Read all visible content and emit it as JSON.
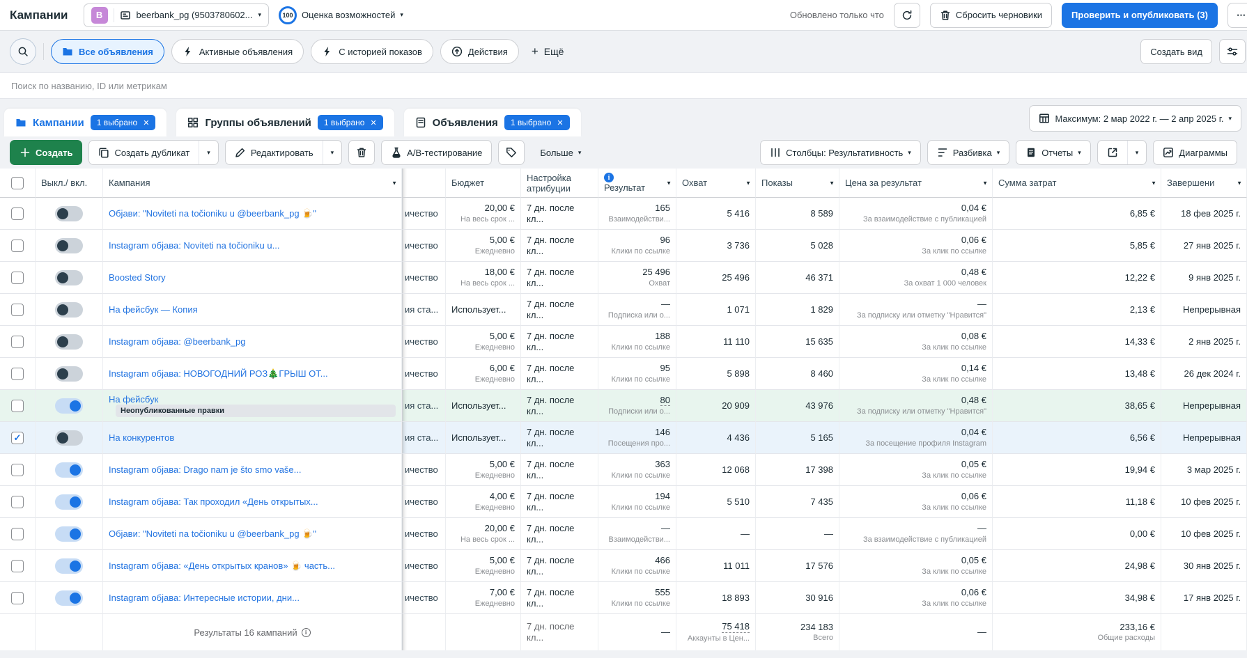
{
  "colors": {
    "accent_blue": "#1b74e4",
    "create_green": "#1e824c",
    "link_blue": "#2374e1",
    "row_highlight_green": "#e8f5ee",
    "row_highlight_blue": "#eaf3fb",
    "avatar_purple": "#c688d8"
  },
  "header": {
    "title": "Кампании",
    "account": {
      "avatar_letter": "B",
      "name": "beerbank_pg (9503780602..."
    },
    "opportunity_score": {
      "value": "100",
      "label": "Оценка возможностей"
    },
    "updated_status": "Обновлено только что",
    "discard_drafts": "Сбросить черновики",
    "publish": "Проверить и опубликовать (3)",
    "more": "⋯"
  },
  "filter_bar": {
    "pills": [
      {
        "label": "Все объявления",
        "icon": "folder",
        "active": true
      },
      {
        "label": "Активные объявления",
        "icon": "bolt",
        "active": false
      },
      {
        "label": "С историей показов",
        "icon": "bolt",
        "active": false
      },
      {
        "label": "Действия",
        "icon": "arrowup",
        "active": false
      }
    ],
    "more": "Ещё",
    "create_view": "Создать вид"
  },
  "search": {
    "placeholder": "Поиск по названию, ID или метрикам"
  },
  "tabs": [
    {
      "label": "Кампании",
      "badge": "1 выбрано",
      "icon": "folder",
      "active": true
    },
    {
      "label": "Группы объявлений",
      "badge": "1 выбрано",
      "icon": "grid",
      "active": false
    },
    {
      "label": "Объявления",
      "badge": "1 выбрано",
      "icon": "file",
      "active": false
    }
  ],
  "date_range": "Максимум: 2 мар 2022 г. — 2 апр 2025 г.",
  "toolbar": {
    "create": "Создать",
    "duplicate": "Создать дубликат",
    "edit": "Редактировать",
    "ab_test": "А/B-тестирование",
    "more": "Больше",
    "columns": "Столбцы: Результативность",
    "breakdown": "Разбивка",
    "reports": "Отчеты",
    "charts": "Диаграммы"
  },
  "table": {
    "headers": {
      "toggle": "Выкл./ вкл.",
      "name": "Кампания",
      "budget": "Бюджет",
      "attribution": "Настройка атрибуции",
      "result": "Результат",
      "reach": "Охват",
      "impressions": "Показы",
      "cpr": "Цена за результат",
      "spent": "Сумма затрат",
      "end": "Завершени"
    },
    "rows": [
      {
        "toggle": "off",
        "checked": false,
        "highlight": null,
        "name": "Објави: \"Noviteti na točioniku u @beerbank_pg 🍺\"",
        "cut": "ичество",
        "budget": "20,00 €",
        "budget_sub": "На весь срок ...",
        "attribution": "7 дн. после кл...",
        "result": "165",
        "result_sub": "Взаимодействи...",
        "reach": "5 416",
        "impressions": "8 589",
        "cpr": "0,04 €",
        "cpr_sub": "За взаимодействие с публикацией",
        "spent": "6,85 €",
        "end": "18 фев 2025 г."
      },
      {
        "toggle": "off",
        "checked": false,
        "highlight": null,
        "name": "Instagram објава: Noviteti na točioniku u...",
        "cut": "ичество",
        "budget": "5,00 €",
        "budget_sub": "Ежедневно",
        "attribution": "7 дн. после кл...",
        "result": "96",
        "result_sub": "Клики по ссылке",
        "reach": "3 736",
        "impressions": "5 028",
        "cpr": "0,06 €",
        "cpr_sub": "За клик по ссылке",
        "spent": "5,85 €",
        "end": "27 янв 2025 г."
      },
      {
        "toggle": "off",
        "checked": false,
        "highlight": null,
        "name": "Boosted Story",
        "cut": "ичество",
        "budget": "18,00 €",
        "budget_sub": "На весь срок ...",
        "attribution": "7 дн. после кл...",
        "result": "25 496",
        "result_sub": "Охват",
        "reach": "25 496",
        "impressions": "46 371",
        "cpr": "0,48 €",
        "cpr_sub": "За охват 1 000 человек",
        "spent": "12,22 €",
        "end": "9 янв 2025 г."
      },
      {
        "toggle": "off",
        "checked": false,
        "highlight": null,
        "name": "На фейсбук — Копия",
        "cut": "ия ста...",
        "budget": "Использует...",
        "budget_sub": null,
        "attribution": "7 дн. после кл...",
        "result": "—",
        "result_sub": "Подписка или о...",
        "reach": "1 071",
        "impressions": "1 829",
        "cpr": "—",
        "cpr_sub": "За подписку или отметку \"Нравится\"",
        "spent": "2,13 €",
        "end": "Непрерывная"
      },
      {
        "toggle": "off",
        "checked": false,
        "highlight": null,
        "name": "Instagram објава: @beerbank_pg",
        "cut": "ичество",
        "budget": "5,00 €",
        "budget_sub": "Ежедневно",
        "attribution": "7 дн. после кл...",
        "result": "188",
        "result_sub": "Клики по ссылке",
        "reach": "11 110",
        "impressions": "15 635",
        "cpr": "0,08 €",
        "cpr_sub": "За клик по ссылке",
        "spent": "14,33 €",
        "end": "2 янв 2025 г."
      },
      {
        "toggle": "off",
        "checked": false,
        "highlight": null,
        "name": "Instagram објава: НОВОГОДНИЙ РОЗ🎄ГРЫШ ОТ...",
        "cut": "ичество",
        "budget": "6,00 €",
        "budget_sub": "Ежедневно",
        "attribution": "7 дн. после кл...",
        "result": "95",
        "result_sub": "Клики по ссылке",
        "reach": "5 898",
        "impressions": "8 460",
        "cpr": "0,14 €",
        "cpr_sub": "За клик по ссылке",
        "spent": "13,48 €",
        "end": "26 дек 2024 г."
      },
      {
        "toggle": "on",
        "checked": false,
        "highlight": "green",
        "name": "На фейсбук",
        "name_badge": "Неопубликованные правки",
        "cut": "ия ста...",
        "budget": "Использует...",
        "budget_sub": null,
        "attribution": "7 дн. после кл...",
        "result": "80",
        "result_underline": true,
        "result_sub": "Подписки или о...",
        "reach": "20 909",
        "impressions": "43 976",
        "cpr": "0,48 €",
        "cpr_sub": "За подписку или отметку \"Нравится\"",
        "spent": "38,65 €",
        "end": "Непрерывная"
      },
      {
        "toggle": "off",
        "checked": true,
        "highlight": "blue",
        "name": "На конкурентов",
        "cut": "ия ста...",
        "budget": "Использует...",
        "budget_sub": null,
        "attribution": "7 дн. после кл...",
        "result": "146",
        "result_sub": "Посещения про...",
        "reach": "4 436",
        "impressions": "5 165",
        "cpr": "0,04 €",
        "cpr_sub": "За посещение профиля Instagram",
        "spent": "6,56 €",
        "end": "Непрерывная"
      },
      {
        "toggle": "on",
        "checked": false,
        "highlight": null,
        "name": "Instagram објава: Drago nam je što smo vaše...",
        "cut": "ичество",
        "budget": "5,00 €",
        "budget_sub": "Ежедневно",
        "attribution": "7 дн. после кл...",
        "result": "363",
        "result_sub": "Клики по ссылке",
        "reach": "12 068",
        "impressions": "17 398",
        "cpr": "0,05 €",
        "cpr_sub": "За клик по ссылке",
        "spent": "19,94 €",
        "end": "3 мар 2025 г."
      },
      {
        "toggle": "on",
        "checked": false,
        "highlight": null,
        "name": "Instagram објава: Так проходил «День открытых...",
        "cut": "ичество",
        "budget": "4,00 €",
        "budget_sub": "Ежедневно",
        "attribution": "7 дн. после кл...",
        "result": "194",
        "result_sub": "Клики по ссылке",
        "reach": "5 510",
        "impressions": "7 435",
        "cpr": "0,06 €",
        "cpr_sub": "За клик по ссылке",
        "spent": "11,18 €",
        "end": "10 фев 2025 г."
      },
      {
        "toggle": "on",
        "checked": false,
        "highlight": null,
        "name": "Објави: \"Noviteti na točioniku u @beerbank_pg 🍺\"",
        "cut": "ичество",
        "budget": "20,00 €",
        "budget_sub": "На весь срок ...",
        "attribution": "7 дн. после кл...",
        "result": "—",
        "result_sub": "Взаимодействи...",
        "reach": "—",
        "impressions": "—",
        "cpr": "—",
        "cpr_sub": "За взаимодействие с публикацией",
        "spent": "0,00 €",
        "end": "10 фев 2025 г."
      },
      {
        "toggle": "on",
        "checked": false,
        "highlight": null,
        "name": "Instagram објава: «День открытых кранов» 🍺 часть...",
        "cut": "ичество",
        "budget": "5,00 €",
        "budget_sub": "Ежедневно",
        "attribution": "7 дн. после кл...",
        "result": "466",
        "result_sub": "Клики по ссылке",
        "reach": "11 011",
        "impressions": "17 576",
        "cpr": "0,05 €",
        "cpr_sub": "За клик по ссылке",
        "spent": "24,98 €",
        "end": "30 янв 2025 г."
      },
      {
        "toggle": "on",
        "checked": false,
        "highlight": null,
        "name": "Instagram објава: Интересные истории, дни...",
        "cut": "ичество",
        "budget": "7,00 €",
        "budget_sub": "Ежедневно",
        "attribution": "7 дн. после кл...",
        "result": "555",
        "result_sub": "Клики по ссылке",
        "reach": "18 893",
        "impressions": "30 916",
        "cpr": "0,06 €",
        "cpr_sub": "За клик по ссылке",
        "spent": "34,98 €",
        "end": "17 янв 2025 г."
      }
    ],
    "footer": {
      "label": "Результаты 16 кампаний",
      "attribution": "7 дн. после кл...",
      "result": "—",
      "reach": "75 418",
      "reach_sub": "Аккаунты в Цен...",
      "impressions": "234 183",
      "impressions_sub": "Всего",
      "cpr": "—",
      "spent": "233,16 €",
      "spent_sub": "Общие расходы"
    }
  }
}
